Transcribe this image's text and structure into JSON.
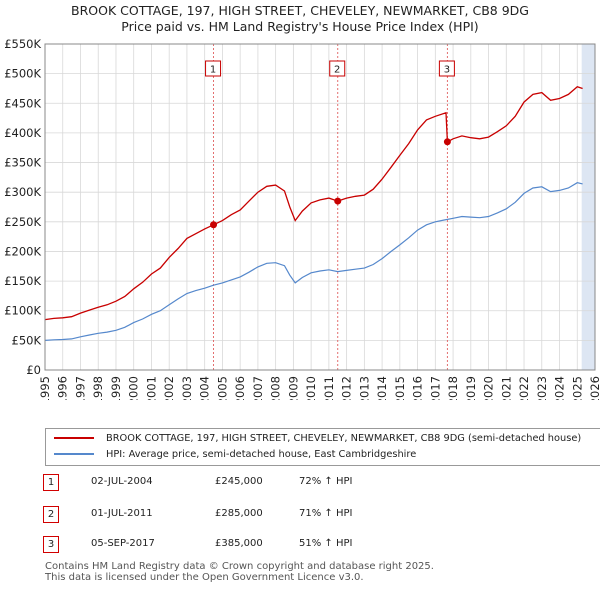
{
  "title_line1": "BROOK COTTAGE, 197, HIGH STREET, CHEVELEY, NEWMARKET, CB8 9DG",
  "title_line2": "Price paid vs. HM Land Registry's House Price Index (HPI)",
  "colors": {
    "property": "#c80000",
    "hpi": "#5588cc",
    "shade": "#dde6f3",
    "marker_line": "#e06060"
  },
  "chart_data": {
    "type": "line",
    "title": "Price paid vs. HM Land Registry's House Price Index (HPI)",
    "xlabel": "",
    "ylabel": "",
    "xlim": [
      1995,
      2026
    ],
    "ylim": [
      0,
      550000
    ],
    "x_ticks": [
      "1995",
      "1996",
      "1997",
      "1998",
      "1999",
      "2000",
      "2001",
      "2002",
      "2003",
      "2004",
      "2005",
      "2006",
      "2007",
      "2008",
      "2009",
      "2010",
      "2011",
      "2012",
      "2013",
      "2014",
      "2015",
      "2016",
      "2017",
      "2018",
      "2019",
      "2020",
      "2021",
      "2022",
      "2023",
      "2024",
      "2025",
      "2026"
    ],
    "y_ticks": [
      {
        "value": 0,
        "label": "£0"
      },
      {
        "value": 50000,
        "label": "£50K"
      },
      {
        "value": 100000,
        "label": "£100K"
      },
      {
        "value": 150000,
        "label": "£150K"
      },
      {
        "value": 200000,
        "label": "£200K"
      },
      {
        "value": 250000,
        "label": "£250K"
      },
      {
        "value": 300000,
        "label": "£300K"
      },
      {
        "value": 350000,
        "label": "£350K"
      },
      {
        "value": 400000,
        "label": "£400K"
      },
      {
        "value": 450000,
        "label": "£450K"
      },
      {
        "value": 500000,
        "label": "£500K"
      },
      {
        "value": 550000,
        "label": "£550K"
      }
    ],
    "grid": true,
    "shaded_future_from": 2025.25,
    "series": [
      {
        "name": "BROOK COTTAGE, 197, HIGH STREET, CHEVELEY, NEWMARKET, CB8 9DG (semi-detached house)",
        "color": "#c80000",
        "points": [
          [
            1995.0,
            85000
          ],
          [
            1995.5,
            87000
          ],
          [
            1996.0,
            88000
          ],
          [
            1996.5,
            90000
          ],
          [
            1997.0,
            96000
          ],
          [
            1997.5,
            101000
          ],
          [
            1998.0,
            106000
          ],
          [
            1998.5,
            110000
          ],
          [
            1999.0,
            116000
          ],
          [
            1999.5,
            124000
          ],
          [
            2000.0,
            137000
          ],
          [
            2000.5,
            148000
          ],
          [
            2001.0,
            162000
          ],
          [
            2001.5,
            172000
          ],
          [
            2002.0,
            190000
          ],
          [
            2002.5,
            205000
          ],
          [
            2003.0,
            222000
          ],
          [
            2003.5,
            230000
          ],
          [
            2004.0,
            238000
          ],
          [
            2004.5,
            245000
          ],
          [
            2005.0,
            252000
          ],
          [
            2005.5,
            262000
          ],
          [
            2006.0,
            270000
          ],
          [
            2006.5,
            285000
          ],
          [
            2007.0,
            300000
          ],
          [
            2007.5,
            310000
          ],
          [
            2008.0,
            312000
          ],
          [
            2008.5,
            302000
          ],
          [
            2008.8,
            275000
          ],
          [
            2009.1,
            252000
          ],
          [
            2009.5,
            268000
          ],
          [
            2010.0,
            282000
          ],
          [
            2010.5,
            287000
          ],
          [
            2011.0,
            290000
          ],
          [
            2011.5,
            285000
          ],
          [
            2012.0,
            290000
          ],
          [
            2012.5,
            293000
          ],
          [
            2013.0,
            295000
          ],
          [
            2013.5,
            305000
          ],
          [
            2014.0,
            322000
          ],
          [
            2014.5,
            342000
          ],
          [
            2015.0,
            362000
          ],
          [
            2015.5,
            382000
          ],
          [
            2016.0,
            405000
          ],
          [
            2016.5,
            422000
          ],
          [
            2017.0,
            428000
          ],
          [
            2017.6,
            434000
          ],
          [
            2017.68,
            385000
          ],
          [
            2018.0,
            390000
          ],
          [
            2018.5,
            395000
          ],
          [
            2019.0,
            392000
          ],
          [
            2019.5,
            390000
          ],
          [
            2020.0,
            393000
          ],
          [
            2020.5,
            402000
          ],
          [
            2021.0,
            412000
          ],
          [
            2021.5,
            428000
          ],
          [
            2022.0,
            452000
          ],
          [
            2022.5,
            465000
          ],
          [
            2023.0,
            468000
          ],
          [
            2023.5,
            455000
          ],
          [
            2024.0,
            458000
          ],
          [
            2024.5,
            465000
          ],
          [
            2025.0,
            478000
          ],
          [
            2025.3,
            475000
          ]
        ]
      },
      {
        "name": "HPI: Average price, semi-detached house, East Cambridgeshire",
        "color": "#5588cc",
        "points": [
          [
            1995.0,
            50000
          ],
          [
            1995.5,
            51000
          ],
          [
            1996.0,
            51500
          ],
          [
            1996.5,
            52500
          ],
          [
            1997.0,
            56000
          ],
          [
            1997.5,
            59000
          ],
          [
            1998.0,
            62000
          ],
          [
            1998.5,
            64000
          ],
          [
            1999.0,
            67000
          ],
          [
            1999.5,
            72000
          ],
          [
            2000.0,
            80000
          ],
          [
            2000.5,
            86000
          ],
          [
            2001.0,
            94000
          ],
          [
            2001.5,
            100000
          ],
          [
            2002.0,
            110000
          ],
          [
            2002.5,
            120000
          ],
          [
            2003.0,
            129000
          ],
          [
            2003.5,
            134000
          ],
          [
            2004.0,
            138000
          ],
          [
            2004.5,
            143000
          ],
          [
            2005.0,
            147000
          ],
          [
            2005.5,
            152000
          ],
          [
            2006.0,
            157000
          ],
          [
            2006.5,
            165000
          ],
          [
            2007.0,
            174000
          ],
          [
            2007.5,
            180000
          ],
          [
            2008.0,
            181000
          ],
          [
            2008.5,
            176000
          ],
          [
            2008.8,
            160000
          ],
          [
            2009.1,
            147000
          ],
          [
            2009.5,
            156000
          ],
          [
            2010.0,
            164000
          ],
          [
            2010.5,
            167000
          ],
          [
            2011.0,
            169000
          ],
          [
            2011.5,
            166000
          ],
          [
            2012.0,
            168000
          ],
          [
            2012.5,
            170000
          ],
          [
            2013.0,
            172000
          ],
          [
            2013.5,
            178000
          ],
          [
            2014.0,
            188000
          ],
          [
            2014.5,
            200000
          ],
          [
            2015.0,
            211000
          ],
          [
            2015.5,
            223000
          ],
          [
            2016.0,
            236000
          ],
          [
            2016.5,
            245000
          ],
          [
            2017.0,
            250000
          ],
          [
            2017.5,
            253000
          ],
          [
            2018.0,
            256000
          ],
          [
            2018.5,
            259000
          ],
          [
            2019.0,
            258000
          ],
          [
            2019.5,
            257000
          ],
          [
            2020.0,
            259000
          ],
          [
            2020.5,
            265000
          ],
          [
            2021.0,
            272000
          ],
          [
            2021.5,
            283000
          ],
          [
            2022.0,
            298000
          ],
          [
            2022.5,
            307000
          ],
          [
            2023.0,
            309000
          ],
          [
            2023.5,
            301000
          ],
          [
            2024.0,
            303000
          ],
          [
            2024.5,
            307000
          ],
          [
            2025.0,
            316000
          ],
          [
            2025.3,
            314000
          ]
        ]
      }
    ],
    "sales": [
      {
        "id": "1",
        "x": 2004.5,
        "y": 245000
      },
      {
        "id": "2",
        "x": 2011.5,
        "y": 285000
      },
      {
        "id": "3",
        "x": 2017.68,
        "y": 385000
      }
    ]
  },
  "legend": {
    "property": "BROOK COTTAGE, 197, HIGH STREET, CHEVELEY, NEWMARKET, CB8 9DG (semi-detached house)",
    "hpi": "HPI: Average price, semi-detached house, East Cambridgeshire"
  },
  "transactions": [
    {
      "id": "1",
      "date": "02-JUL-2004",
      "price": "£245,000",
      "hpi": "72% ↑ HPI"
    },
    {
      "id": "2",
      "date": "01-JUL-2011",
      "price": "£285,000",
      "hpi": "71% ↑ HPI"
    },
    {
      "id": "3",
      "date": "05-SEP-2017",
      "price": "£385,000",
      "hpi": "51% ↑ HPI"
    }
  ],
  "footer_line1": "Contains HM Land Registry data © Crown copyright and database right 2025.",
  "footer_line2": "This data is licensed under the Open Government Licence v3.0."
}
